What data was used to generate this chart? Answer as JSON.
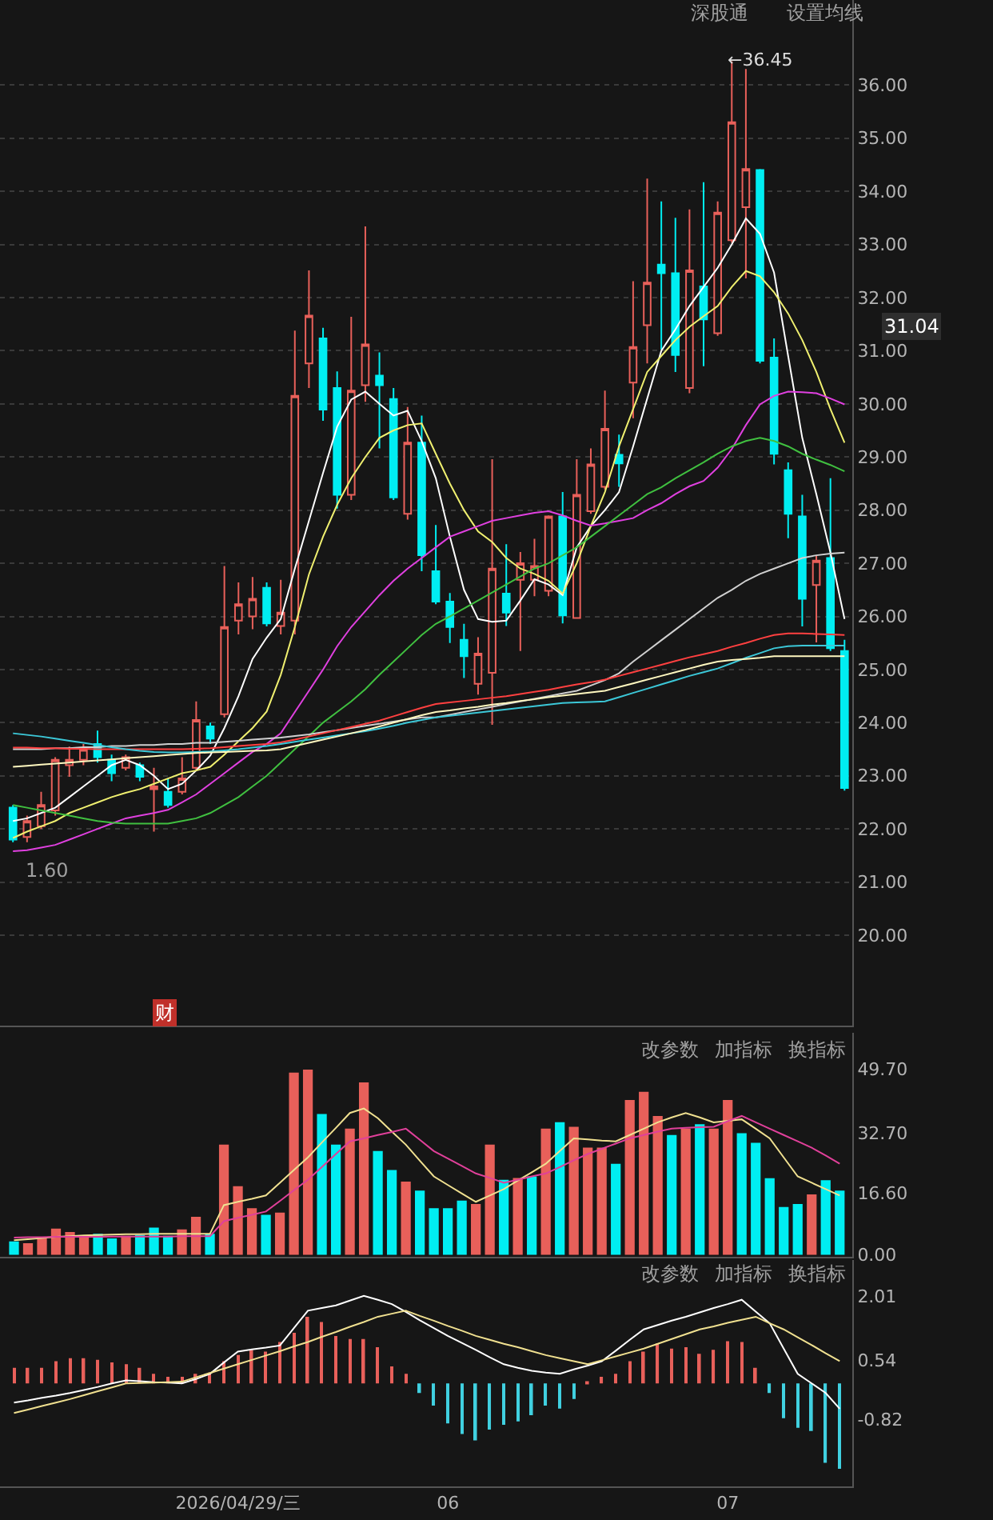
{
  "chart_data": [
    {
      "type": "candlestick",
      "categories": [
        null,
        null,
        null,
        null,
        null,
        null,
        null,
        null,
        null,
        null,
        null,
        null,
        null,
        null,
        null,
        null,
        null,
        null,
        null,
        null,
        null,
        null,
        null,
        null,
        null,
        null,
        null,
        null,
        null,
        null,
        null,
        null,
        null,
        null,
        null,
        null,
        null,
        null,
        null,
        null,
        null,
        null,
        null,
        null,
        null,
        null,
        null,
        null,
        null,
        null,
        null,
        null,
        null,
        null,
        null,
        null,
        null,
        null,
        null,
        null
      ],
      "ohlc": [
        [
          22.4,
          22.45,
          21.75,
          21.8
        ],
        [
          21.85,
          22.25,
          21.75,
          22.15
        ],
        [
          22.05,
          22.7,
          22.0,
          22.45
        ],
        [
          22.35,
          23.35,
          22.25,
          23.3
        ],
        [
          23.2,
          23.55,
          22.98,
          23.3
        ],
        [
          23.3,
          23.6,
          23.2,
          23.5
        ],
        [
          23.6,
          23.85,
          23.25,
          23.35
        ],
        [
          23.3,
          23.4,
          22.9,
          23.05
        ],
        [
          23.15,
          23.4,
          23.1,
          23.35
        ],
        [
          23.2,
          23.25,
          22.9,
          22.98
        ],
        [
          22.75,
          23.15,
          21.95,
          22.8
        ],
        [
          22.7,
          22.95,
          22.4,
          22.45
        ],
        [
          22.7,
          23.35,
          22.65,
          22.95
        ],
        [
          23.15,
          24.4,
          23.1,
          24.05
        ],
        [
          23.93,
          24.0,
          23.6,
          23.7
        ],
        [
          24.16,
          26.95,
          24.1,
          25.8
        ],
        [
          25.92,
          26.64,
          25.66,
          26.23
        ],
        [
          26.0,
          26.74,
          25.76,
          26.33
        ],
        [
          26.54,
          26.64,
          25.81,
          25.87
        ],
        [
          25.82,
          26.69,
          25.66,
          26.07
        ],
        [
          25.92,
          31.38,
          25.66,
          30.15
        ],
        [
          30.76,
          32.51,
          30.3,
          31.66
        ],
        [
          31.23,
          31.43,
          29.68,
          29.89
        ],
        [
          30.3,
          30.61,
          28.03,
          28.29
        ],
        [
          28.29,
          31.64,
          28.19,
          30.25
        ],
        [
          30.35,
          33.34,
          30.04,
          31.12
        ],
        [
          30.53,
          30.97,
          29.16,
          30.35
        ],
        [
          30.09,
          30.3,
          28.19,
          28.24
        ],
        [
          27.93,
          29.94,
          27.82,
          29.27
        ],
        [
          29.27,
          29.78,
          26.85,
          27.15
        ],
        [
          26.85,
          27.72,
          26.23,
          26.28
        ],
        [
          26.28,
          26.44,
          25.5,
          25.8
        ],
        [
          25.56,
          25.86,
          24.84,
          25.25
        ],
        [
          24.73,
          25.61,
          24.53,
          25.3
        ],
        [
          24.94,
          28.96,
          23.96,
          26.9
        ],
        [
          26.43,
          27.36,
          25.82,
          26.07
        ],
        [
          26.69,
          27.21,
          25.35,
          27.0
        ],
        [
          26.69,
          27.46,
          26.38,
          26.95
        ],
        [
          26.48,
          27.9,
          26.38,
          27.88
        ],
        [
          27.88,
          28.34,
          25.87,
          26.02
        ],
        [
          25.97,
          28.96,
          25.97,
          28.29
        ],
        [
          27.98,
          29.16,
          27.93,
          28.86
        ],
        [
          28.44,
          30.25,
          28.39,
          29.53
        ],
        [
          29.04,
          29.42,
          28.44,
          28.88
        ],
        [
          30.4,
          32.31,
          29.73,
          31.07
        ],
        [
          31.48,
          34.24,
          30.76,
          32.28
        ],
        [
          32.62,
          33.81,
          31.02,
          32.46
        ],
        [
          32.46,
          33.5,
          30.6,
          30.92
        ],
        [
          30.3,
          33.66,
          30.2,
          32.51
        ],
        [
          32.21,
          34.17,
          30.71,
          31.59
        ],
        [
          31.33,
          33.81,
          31.28,
          33.6
        ],
        [
          33.08,
          36.45,
          33.03,
          35.3
        ],
        [
          33.7,
          36.3,
          32.36,
          34.42
        ],
        [
          34.4,
          34.42,
          30.76,
          30.81
        ],
        [
          30.87,
          31.23,
          28.86,
          29.06
        ],
        [
          28.75,
          28.9,
          27.47,
          27.93
        ],
        [
          27.88,
          28.29,
          25.81,
          26.33
        ],
        [
          26.59,
          27.15,
          25.51,
          27.05
        ],
        [
          27.1,
          28.6,
          25.35,
          25.4
        ],
        [
          25.35,
          25.56,
          22.72,
          22.77
        ]
      ],
      "colors": [
        "#00eef2",
        "#e8605a",
        "#e8605a",
        "#e8605a",
        "#e8605a",
        "#e8605a",
        "#00eef2",
        "#00eef2",
        "#e8605a",
        "#00eef2",
        "#e8605a",
        "#00eef2",
        "#e8605a",
        "#e8605a",
        "#00eef2",
        "#e8605a",
        "#e8605a",
        "#e8605a",
        "#00eef2",
        "#e8605a",
        "#e8605a",
        "#e8605a",
        "#00eef2",
        "#00eef2",
        "#e8605a",
        "#e8605a",
        "#00eef2",
        "#00eef2",
        "#e8605a",
        "#00eef2",
        "#00eef2",
        "#00eef2",
        "#00eef2",
        "#e8605a",
        "#e8605a",
        "#00eef2",
        "#e8605a",
        "#e8605a",
        "#e8605a",
        "#00eef2",
        "#e8605a",
        "#e8605a",
        "#e8605a",
        "#00eef2",
        "#e8605a",
        "#e8605a",
        "#00eef2",
        "#00eef2",
        "#e8605a",
        "#00eef2",
        "#e8605a",
        "#e8605a",
        "#e8605a",
        "#00eef2",
        "#00eef2",
        "#00eef2",
        "#00eef2",
        "#e8605a",
        "#00eef2",
        "#00eef2"
      ],
      "series": [
        {
          "type": "line",
          "color": "#ffffff",
          "values": [
            22.15,
            22.2,
            22.3,
            22.4,
            22.6,
            22.8,
            23.0,
            23.2,
            23.3,
            23.2,
            23.0,
            22.75,
            22.85,
            23.1,
            23.38,
            23.9,
            24.5,
            25.2,
            25.6,
            25.95,
            26.9,
            27.8,
            28.7,
            29.57,
            30.08,
            30.23,
            30.0,
            29.78,
            29.87,
            29.3,
            28.6,
            27.5,
            26.5,
            25.95,
            25.9,
            25.92,
            26.3,
            26.7,
            26.6,
            26.4,
            27.3,
            27.7,
            28.0,
            28.34,
            29.2,
            30.1,
            31.0,
            31.4,
            31.84,
            32.2,
            32.56,
            33.0,
            33.49,
            33.2,
            32.47,
            30.9,
            29.36,
            28.3,
            27.2,
            25.95
          ]
        },
        {
          "type": "line",
          "color": "#f0f070",
          "values": [
            21.83,
            21.95,
            22.05,
            22.15,
            22.3,
            22.4,
            22.5,
            22.6,
            22.68,
            22.75,
            22.85,
            22.95,
            23.05,
            23.1,
            23.17,
            23.4,
            23.65,
            23.9,
            24.21,
            24.9,
            25.8,
            26.79,
            27.5,
            28.1,
            28.6,
            29.0,
            29.36,
            29.5,
            29.6,
            29.63,
            29.06,
            28.5,
            28.0,
            27.6,
            27.4,
            27.1,
            26.9,
            26.8,
            26.67,
            26.43,
            27.0,
            27.7,
            28.34,
            29.2,
            29.9,
            30.6,
            30.9,
            31.2,
            31.45,
            31.65,
            31.84,
            32.2,
            32.5,
            32.4,
            32.1,
            31.7,
            31.2,
            30.6,
            29.9,
            29.27
          ]
        },
        {
          "type": "line",
          "color": "#e040e0",
          "values": [
            21.58,
            21.6,
            21.65,
            21.7,
            21.8,
            21.9,
            22.0,
            22.1,
            22.2,
            22.25,
            22.3,
            22.36,
            22.5,
            22.65,
            22.85,
            23.05,
            23.25,
            23.45,
            23.6,
            23.8,
            24.2,
            24.6,
            25.0,
            25.44,
            25.8,
            26.1,
            26.4,
            26.67,
            26.9,
            27.1,
            27.3,
            27.5,
            27.6,
            27.7,
            27.8,
            27.85,
            27.9,
            27.95,
            27.98,
            27.9,
            27.8,
            27.71,
            27.75,
            27.8,
            27.85,
            28.0,
            28.13,
            28.3,
            28.45,
            28.55,
            28.8,
            29.15,
            29.6,
            29.99,
            30.15,
            30.23,
            30.22,
            30.2,
            30.1,
            29.99
          ]
        },
        {
          "type": "line",
          "color": "#40c040",
          "values": [
            22.45,
            22.4,
            22.35,
            22.3,
            22.25,
            22.2,
            22.15,
            22.12,
            22.1,
            22.1,
            22.1,
            22.1,
            22.15,
            22.2,
            22.3,
            22.45,
            22.6,
            22.8,
            23.0,
            23.25,
            23.5,
            23.75,
            24.0,
            24.2,
            24.4,
            24.63,
            24.9,
            25.15,
            25.4,
            25.65,
            25.86,
            26.0,
            26.15,
            26.3,
            26.45,
            26.6,
            26.75,
            26.9,
            27.0,
            27.15,
            27.3,
            27.5,
            27.7,
            27.9,
            28.1,
            28.3,
            28.43,
            28.6,
            28.75,
            28.9,
            29.06,
            29.2,
            29.3,
            29.36,
            29.3,
            29.2,
            29.06,
            28.95,
            28.85,
            28.73
          ]
        },
        {
          "type": "line",
          "color": "#d0d0d0",
          "values": [
            23.5,
            23.5,
            23.5,
            23.52,
            23.52,
            23.54,
            23.54,
            23.56,
            23.56,
            23.58,
            23.58,
            23.6,
            23.6,
            23.62,
            23.62,
            23.64,
            23.66,
            23.68,
            23.7,
            23.72,
            23.75,
            23.78,
            23.82,
            23.86,
            23.9,
            23.94,
            23.98,
            24.02,
            24.06,
            24.1,
            24.1,
            24.15,
            24.2,
            24.25,
            24.3,
            24.35,
            24.4,
            24.45,
            24.5,
            24.55,
            24.6,
            24.7,
            24.8,
            24.93,
            25.15,
            25.35,
            25.55,
            25.75,
            25.95,
            26.15,
            26.35,
            26.5,
            26.67,
            26.8,
            26.9,
            27.0,
            27.1,
            27.15,
            27.18,
            27.2
          ]
        },
        {
          "type": "line",
          "color": "#ff4040",
          "values": [
            23.53,
            23.53,
            23.52,
            23.52,
            23.51,
            23.51,
            23.5,
            23.5,
            23.5,
            23.5,
            23.5,
            23.5,
            23.5,
            23.51,
            23.52,
            23.54,
            23.56,
            23.58,
            23.6,
            23.63,
            23.68,
            23.74,
            23.8,
            23.86,
            23.92,
            23.98,
            24.04,
            24.12,
            24.2,
            24.28,
            24.35,
            24.38,
            24.41,
            24.44,
            24.47,
            24.5,
            24.54,
            24.58,
            24.62,
            24.67,
            24.72,
            24.76,
            24.81,
            24.88,
            24.95,
            25.02,
            25.09,
            25.16,
            25.23,
            25.29,
            25.35,
            25.43,
            25.5,
            25.58,
            25.65,
            25.68,
            25.68,
            25.67,
            25.66,
            25.65
          ]
        },
        {
          "type": "line",
          "color": "#3cc8d8",
          "values": [
            23.8,
            23.77,
            23.74,
            23.7,
            23.66,
            23.62,
            23.58,
            23.54,
            23.5,
            23.47,
            23.45,
            23.44,
            23.44,
            23.45,
            23.46,
            23.48,
            23.5,
            23.53,
            23.56,
            23.6,
            23.64,
            23.68,
            23.72,
            23.76,
            23.8,
            23.84,
            23.89,
            23.94,
            24.0,
            24.05,
            24.1,
            24.13,
            24.16,
            24.19,
            24.22,
            24.25,
            24.28,
            24.31,
            24.34,
            24.37,
            24.38,
            24.39,
            24.4,
            24.48,
            24.56,
            24.64,
            24.72,
            24.8,
            24.88,
            24.95,
            25.02,
            25.12,
            25.22,
            25.31,
            25.4,
            25.44,
            25.45,
            25.45,
            25.45,
            25.45
          ]
        },
        {
          "type": "line",
          "color": "#fff8c0",
          "values": [
            23.17,
            23.19,
            23.21,
            23.23,
            23.25,
            23.27,
            23.29,
            23.31,
            23.33,
            23.35,
            23.37,
            23.39,
            23.41,
            23.43,
            23.44,
            23.45,
            23.46,
            23.47,
            23.48,
            23.5,
            23.56,
            23.62,
            23.68,
            23.74,
            23.8,
            23.86,
            23.93,
            24.0,
            24.07,
            24.14,
            24.2,
            24.23,
            24.27,
            24.3,
            24.34,
            24.37,
            24.41,
            24.44,
            24.48,
            24.51,
            24.54,
            24.57,
            24.6,
            24.67,
            24.74,
            24.81,
            24.88,
            24.95,
            25.02,
            25.09,
            25.15,
            25.18,
            25.2,
            25.22,
            25.25,
            25.25,
            25.25,
            25.25,
            25.25,
            25.25
          ]
        }
      ],
      "ylim": [
        18.3,
        37.6
      ],
      "yticks": [
        {
          "value": 20,
          "label": "20.00"
        },
        {
          "value": 21,
          "label": "21.00"
        },
        {
          "value": 22,
          "label": "22.00"
        },
        {
          "value": 23,
          "label": "23.00"
        },
        {
          "value": 24,
          "label": "24.00"
        },
        {
          "value": 25,
          "label": "25.00"
        },
        {
          "value": 26,
          "label": "26.00"
        },
        {
          "value": 27,
          "label": "27.00"
        },
        {
          "value": 28,
          "label": "28.00"
        },
        {
          "value": 29,
          "label": "29.00"
        },
        {
          "value": 30,
          "label": "30.00"
        },
        {
          "value": 31,
          "label": "31.00"
        },
        {
          "value": 32,
          "label": "32.00"
        },
        {
          "value": 33,
          "label": "33.00"
        },
        {
          "value": 34,
          "label": "34.00"
        },
        {
          "value": 35,
          "label": "35.00"
        },
        {
          "value": 36,
          "label": "36.00"
        }
      ],
      "grid": "y",
      "tick_labels": "y",
      "annotations": [
        "←36.45",
        "31.04",
        "深股通",
        "设置均线",
        "1.60",
        "财"
      ]
    },
    {
      "type": "bar",
      "categories": [
        null,
        null,
        null,
        null,
        null,
        null,
        null,
        null,
        null,
        null,
        null,
        null,
        null,
        null,
        null,
        null,
        null,
        null,
        null,
        null,
        null,
        null,
        null,
        null,
        null,
        null,
        null,
        null,
        null,
        null,
        null,
        null,
        null,
        null,
        null,
        null,
        null,
        null,
        null,
        null,
        null,
        null,
        null,
        null,
        null,
        null,
        null,
        null,
        null,
        null,
        null,
        null,
        null,
        null,
        null,
        null,
        null,
        null,
        null,
        null
      ],
      "values": [
        3.6,
        3.1,
        4.8,
        7.0,
        6.1,
        4.8,
        5.6,
        4.4,
        5.1,
        5.3,
        7.3,
        5.1,
        6.8,
        10.2,
        5.6,
        29.5,
        18.4,
        12.5,
        10.7,
        11.3,
        48.8,
        49.6,
        37.7,
        29.5,
        33.8,
        46.2,
        27.8,
        22.7,
        19.6,
        17.2,
        12.5,
        12.5,
        14.5,
        13.6,
        29.5,
        20.1,
        20.6,
        21.0,
        33.8,
        35.5,
        34.3,
        28.7,
        28.7,
        24.4,
        41.5,
        43.7,
        37.2,
        32.1,
        33.8,
        35.0,
        33.8,
        41.5,
        32.6,
        30.0,
        20.5,
        12.8,
        13.6,
        16.2,
        20.0,
        17.2
      ],
      "colors": [
        "#00eef2",
        "#e8605a",
        "#e8605a",
        "#e8605a",
        "#e8605a",
        "#e8605a",
        "#00eef2",
        "#00eef2",
        "#e8605a",
        "#00eef2",
        "#00eef2",
        "#00eef2",
        "#e8605a",
        "#e8605a",
        "#00eef2",
        "#e8605a",
        "#e8605a",
        "#e8605a",
        "#00eef2",
        "#e8605a",
        "#e8605a",
        "#e8605a",
        "#00eef2",
        "#00eef2",
        "#e8605a",
        "#e8605a",
        "#00eef2",
        "#00eef2",
        "#e8605a",
        "#00eef2",
        "#00eef2",
        "#00eef2",
        "#00eef2",
        "#e8605a",
        "#e8605a",
        "#00eef2",
        "#e8605a",
        "#00eef2",
        "#e8605a",
        "#00eef2",
        "#e8605a",
        "#e8605a",
        "#e8605a",
        "#00eef2",
        "#e8605a",
        "#e8605a",
        "#e8605a",
        "#00eef2",
        "#e8605a",
        "#00eef2",
        "#e8605a",
        "#e8605a",
        "#00eef2",
        "#00eef2",
        "#00eef2",
        "#00eef2",
        "#00eef2",
        "#e8605a",
        "#00eef2",
        "#00eef2"
      ],
      "series": [
        {
          "type": "line",
          "color": "#f0e090",
          "values": [
            3.9,
            4.2,
            4.5,
            4.8,
            5.0,
            5.2,
            5.3,
            5.4,
            5.5,
            5.5,
            5.6,
            5.6,
            5.6,
            5.6,
            5.6,
            13.3,
            14.2,
            15.0,
            15.9,
            19.3,
            22.7,
            26.1,
            30.1,
            34.0,
            38.0,
            39.2,
            36.6,
            33.0,
            29.5,
            25.2,
            21.0,
            18.7,
            16.4,
            14.2,
            15.9,
            17.6,
            19.9,
            22.1,
            24.4,
            27.8,
            31.2,
            30.9,
            30.6,
            30.4,
            32.1,
            33.8,
            35.5,
            36.8,
            38.0,
            36.8,
            35.5,
            35.9,
            36.3,
            33.8,
            31.2,
            26.1,
            21.0,
            19.3,
            17.6,
            15.9
          ]
        },
        {
          "type": "line",
          "color": "#e0409a",
          "values": [
            4.6,
            4.7,
            4.7,
            4.8,
            4.8,
            4.8,
            4.8,
            4.9,
            4.9,
            4.9,
            4.9,
            4.9,
            5.0,
            5.0,
            5.0,
            9.0,
            9.9,
            10.7,
            11.6,
            14.4,
            17.3,
            20.1,
            23.5,
            27.0,
            30.4,
            31.2,
            32.1,
            32.9,
            33.8,
            30.8,
            27.8,
            25.8,
            23.8,
            21.8,
            20.6,
            19.3,
            20.1,
            21.0,
            21.8,
            23.5,
            25.3,
            27.0,
            28.4,
            29.8,
            31.2,
            32.1,
            33.0,
            33.8,
            34.0,
            34.2,
            34.3,
            35.8,
            37.2,
            35.5,
            33.8,
            32.1,
            30.4,
            28.7,
            26.6,
            24.4
          ]
        }
      ],
      "ylim": [
        -0.5,
        59.4
      ],
      "yticks": [
        {
          "value": 0,
          "label": "0.00"
        },
        {
          "value": 16.6,
          "label": "16.60"
        },
        {
          "value": 32.7,
          "label": "32.70"
        },
        {
          "value": 49.7,
          "label": "49.70"
        }
      ],
      "tick_labels": "y",
      "annotations": [
        "改参数",
        "加指标",
        "换指标"
      ]
    },
    {
      "type": "bar",
      "categories": [
        null,
        null,
        null,
        null,
        null,
        null,
        null,
        null,
        null,
        null,
        null,
        null,
        null,
        null,
        null,
        null,
        "2026/04/29/三",
        null,
        null,
        null,
        null,
        null,
        null,
        null,
        null,
        null,
        null,
        null,
        null,
        null,
        null,
        "06",
        null,
        null,
        null,
        null,
        null,
        null,
        null,
        null,
        null,
        null,
        null,
        null,
        null,
        null,
        null,
        null,
        null,
        null,
        null,
        "07",
        null,
        null,
        null,
        null,
        null,
        null,
        null,
        null
      ],
      "values": [
        0.36,
        0.36,
        0.36,
        0.51,
        0.58,
        0.58,
        0.54,
        0.48,
        0.44,
        0.36,
        0.22,
        0.15,
        0.15,
        0.22,
        0.25,
        0.51,
        0.65,
        0.77,
        0.73,
        0.95,
        1.16,
        1.53,
        1.41,
        1.09,
        1.02,
        1.02,
        0.83,
        0.39,
        0.22,
        -0.22,
        -0.51,
        -0.92,
        -1.16,
        -1.31,
        -1.06,
        -0.95,
        -0.87,
        -0.73,
        -0.51,
        -0.58,
        -0.36,
        0.03,
        0.15,
        0.22,
        0.51,
        0.73,
        0.92,
        0.8,
        0.83,
        0.68,
        0.77,
        0.97,
        0.95,
        0.36,
        -0.22,
        -0.8,
        -1.02,
        -1.09,
        -1.82,
        -1.96
      ],
      "colors": [
        "#e8605a",
        "#e8605a",
        "#e8605a",
        "#e8605a",
        "#e8605a",
        "#e8605a",
        "#e8605a",
        "#e8605a",
        "#e8605a",
        "#e8605a",
        "#e8605a",
        "#e8605a",
        "#e8605a",
        "#e8605a",
        "#e8605a",
        "#e8605a",
        "#e8605a",
        "#e8605a",
        "#e8605a",
        "#e8605a",
        "#e8605a",
        "#e8605a",
        "#e8605a",
        "#e8605a",
        "#e8605a",
        "#e8605a",
        "#e8605a",
        "#e8605a",
        "#e8605a",
        "#40d0e0",
        "#40d0e0",
        "#40d0e0",
        "#40d0e0",
        "#40d0e0",
        "#40d0e0",
        "#40d0e0",
        "#40d0e0",
        "#40d0e0",
        "#40d0e0",
        "#40d0e0",
        "#40d0e0",
        "#e8605a",
        "#e8605a",
        "#e8605a",
        "#e8605a",
        "#e8605a",
        "#e8605a",
        "#e8605a",
        "#e8605a",
        "#e8605a",
        "#e8605a",
        "#e8605a",
        "#e8605a",
        "#e8605a",
        "#40d0e0",
        "#40d0e0",
        "#40d0e0",
        "#40d0e0",
        "#40d0e0",
        "#40d0e0"
      ],
      "series": [
        {
          "type": "line",
          "color": "#ffffff",
          "values": [
            -0.44,
            -0.39,
            -0.33,
            -0.28,
            -0.22,
            -0.15,
            -0.08,
            0.0,
            0.07,
            0.05,
            0.03,
            0.02,
            0.0,
            0.1,
            0.22,
            0.48,
            0.73,
            0.78,
            0.82,
            0.87,
            1.27,
            1.67,
            1.73,
            1.79,
            1.9,
            2.01,
            1.92,
            1.82,
            1.64,
            1.45,
            1.27,
            1.09,
            0.93,
            0.77,
            0.6,
            0.44,
            0.36,
            0.29,
            0.25,
            0.22,
            0.32,
            0.41,
            0.51,
            0.75,
            1.0,
            1.24,
            1.34,
            1.44,
            1.53,
            1.63,
            1.73,
            1.82,
            1.92,
            1.65,
            1.38,
            0.8,
            0.22,
            0.0,
            -0.22,
            -0.58
          ]
        },
        {
          "type": "line",
          "color": "#f0e090",
          "values": [
            -0.68,
            -0.6,
            -0.52,
            -0.44,
            -0.36,
            -0.27,
            -0.18,
            -0.09,
            0.0,
            0.01,
            0.02,
            0.03,
            0.04,
            0.14,
            0.24,
            0.34,
            0.44,
            0.54,
            0.64,
            0.74,
            0.85,
            0.95,
            1.07,
            1.18,
            1.3,
            1.41,
            1.53,
            1.6,
            1.67,
            1.55,
            1.44,
            1.32,
            1.21,
            1.09,
            1.0,
            0.91,
            0.83,
            0.74,
            0.65,
            0.58,
            0.51,
            0.44,
            0.53,
            0.62,
            0.71,
            0.8,
            0.91,
            1.02,
            1.13,
            1.24,
            1.31,
            1.39,
            1.46,
            1.53,
            1.38,
            1.24,
            1.06,
            0.88,
            0.69,
            0.51
          ]
        }
      ],
      "ylim": [
        -2.36,
        2.84
      ],
      "yticks": [
        {
          "value": -0.82,
          "label": "-0.82"
        },
        {
          "value": 0.54,
          "label": "0.54"
        },
        {
          "value": 2.01,
          "label": "2.01"
        }
      ],
      "annotations": [
        "改参数",
        "加指标",
        "换指标"
      ]
    }
  ]
}
